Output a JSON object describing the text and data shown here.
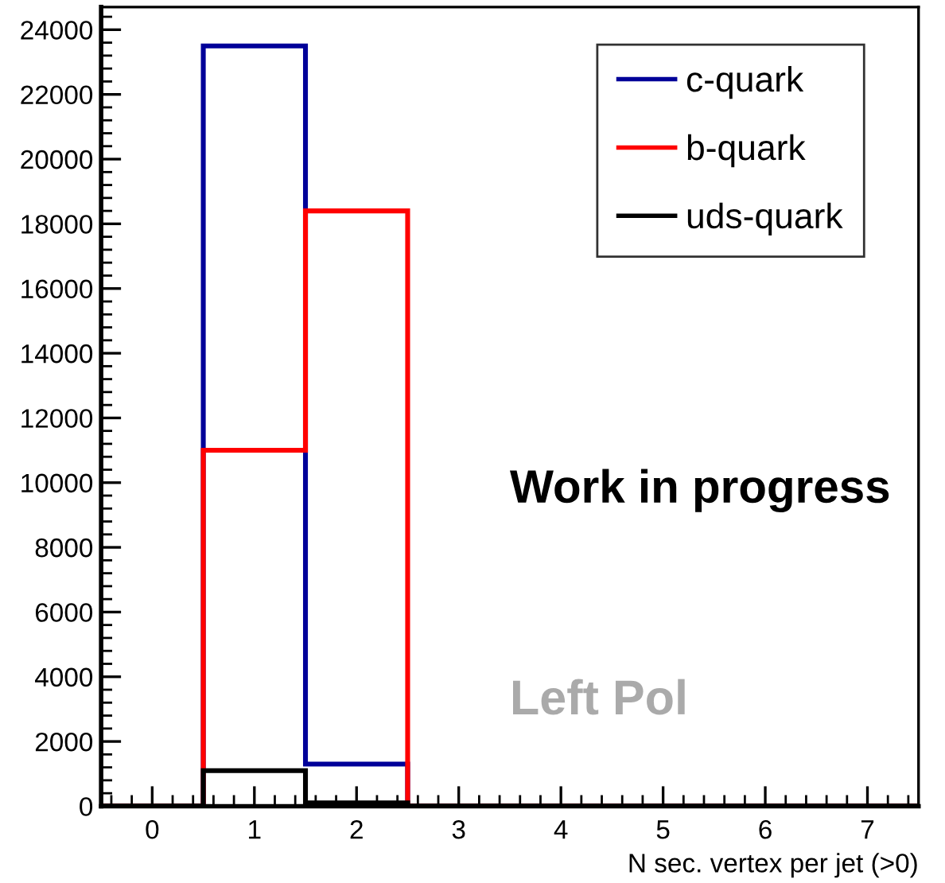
{
  "chart_data": {
    "type": "histogram",
    "xlabel": "N sec. vertex per jet (>0)",
    "bins": [
      -0.5,
      0.5,
      1.5,
      2.5,
      3.5,
      4.5,
      5.5,
      6.5,
      7.5
    ],
    "series": [
      {
        "name": "c-quark",
        "color": "#000099",
        "values": [
          0,
          23500,
          1300,
          0,
          0,
          0,
          0,
          0
        ]
      },
      {
        "name": "b-quark",
        "color": "#ff0000",
        "values": [
          0,
          11000,
          18400,
          0,
          0,
          0,
          0,
          0
        ]
      },
      {
        "name": "uds-quark",
        "color": "#000000",
        "values": [
          0,
          1100,
          100,
          0,
          0,
          0,
          0,
          0
        ]
      }
    ],
    "xlim": [
      -0.5,
      7.5
    ],
    "ylim": [
      0,
      24700
    ],
    "xticks": [
      0,
      1,
      2,
      3,
      4,
      5,
      6,
      7
    ],
    "yticks": [
      0,
      2000,
      4000,
      6000,
      8000,
      10000,
      12000,
      14000,
      16000,
      18000,
      20000,
      22000,
      24000
    ],
    "grid": false,
    "legend": "top right",
    "annotations": [
      "Work in progress",
      "Left Pol"
    ]
  }
}
